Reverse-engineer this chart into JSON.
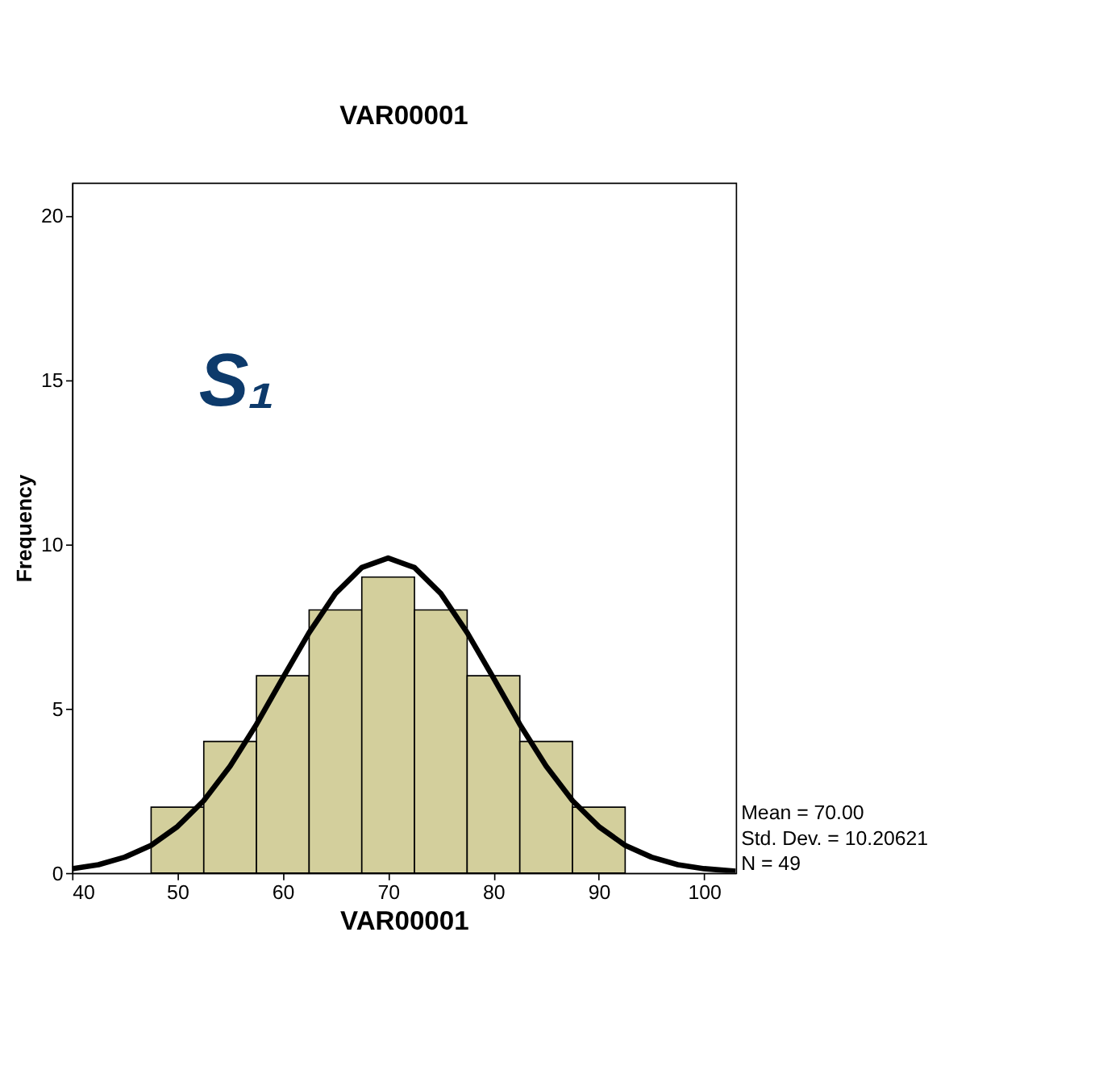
{
  "chart_data": {
    "type": "histogram",
    "title": "VAR00001",
    "xlabel": "VAR00001",
    "ylabel": "Frequency",
    "bins": [
      47.5,
      52.5,
      57.5,
      62.5,
      67.5,
      72.5,
      77.5,
      82.5,
      87.5,
      92.5
    ],
    "values": [
      2,
      4,
      6,
      8,
      9,
      8,
      6,
      4,
      2
    ],
    "color": "#d3cf9c",
    "series": [
      {
        "type": "line",
        "color": "#000000",
        "x": [
          40,
          42.5,
          45,
          47.5,
          50,
          52.5,
          55,
          57.5,
          60,
          62.5,
          65,
          67.5,
          70,
          72.5,
          75,
          77.5,
          80,
          82.5,
          85,
          87.5,
          90,
          92.5,
          95,
          97.5,
          100,
          103
        ],
        "values": [
          0.13,
          0.25,
          0.48,
          0.84,
          1.41,
          2.2,
          3.25,
          4.52,
          5.93,
          7.31,
          8.5,
          9.29,
          9.58,
          9.29,
          8.5,
          7.31,
          5.93,
          4.52,
          3.25,
          2.2,
          1.41,
          0.84,
          0.48,
          0.25,
          0.13,
          0.05
        ]
      }
    ],
    "xlim": [
      40,
      103
    ],
    "xticks": [
      40,
      50,
      60,
      70,
      80,
      90,
      100
    ],
    "ylim": [
      0,
      21
    ],
    "yticks": [
      0,
      5,
      10,
      15,
      20
    ],
    "grid": false,
    "annotations": [
      "S₁",
      "Mean = 70.00",
      "Std. Dev. = 10.20621",
      "N = 49"
    ]
  }
}
